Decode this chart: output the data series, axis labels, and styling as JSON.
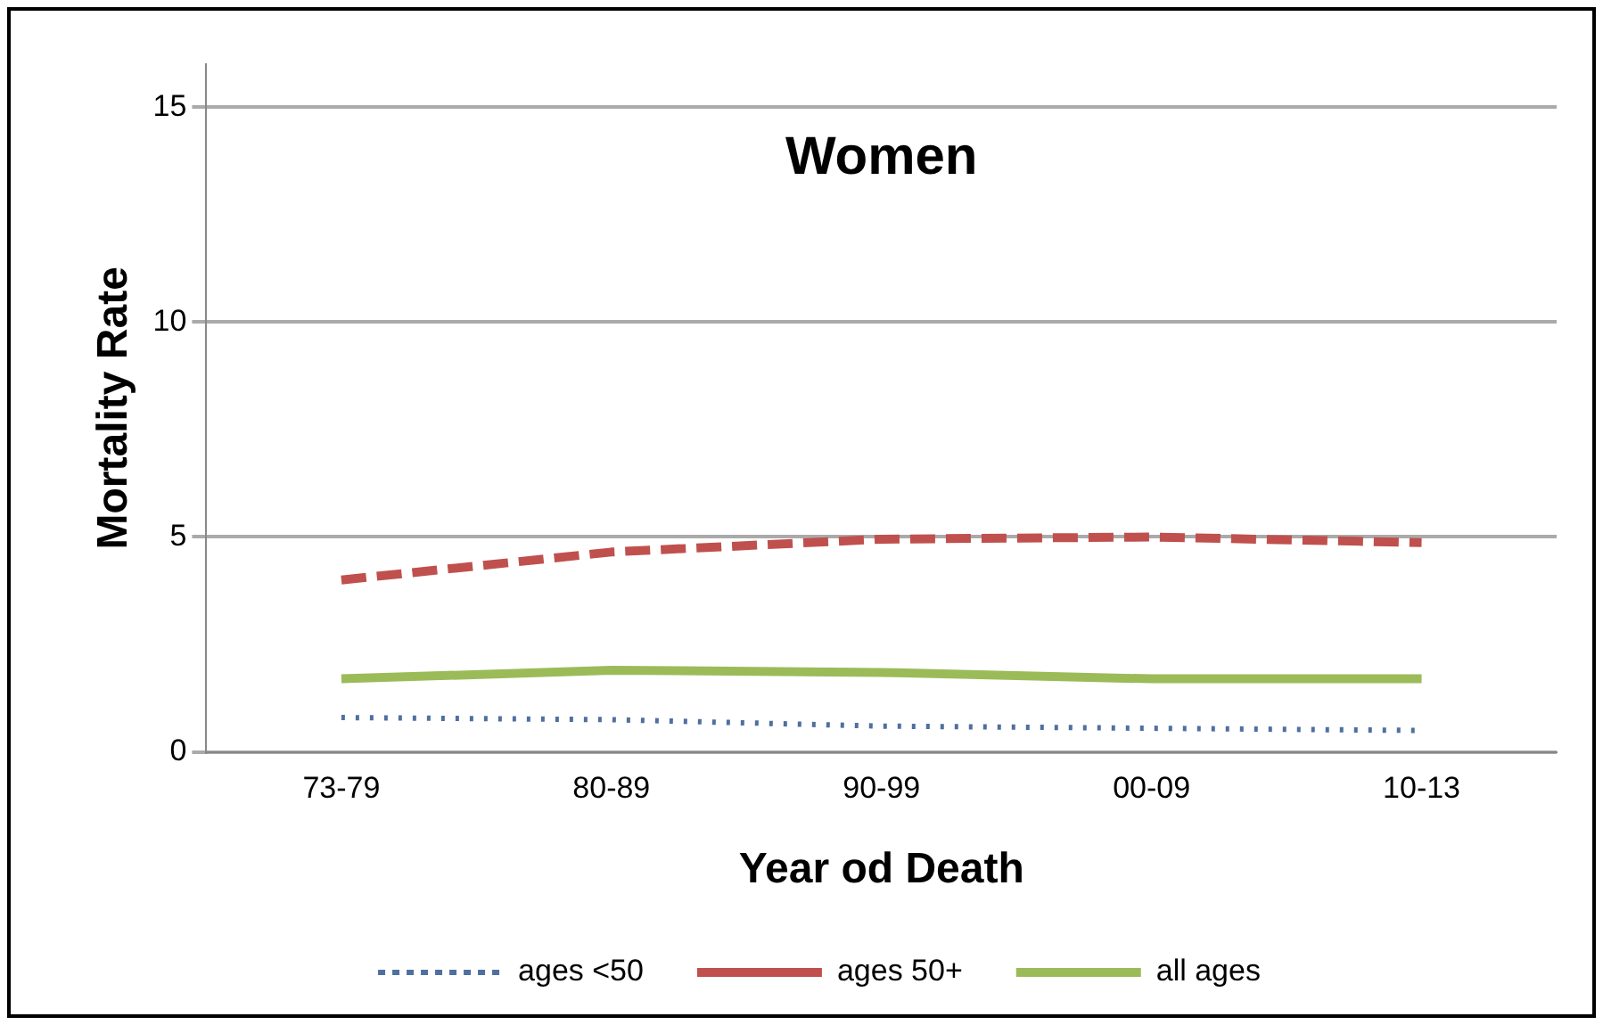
{
  "chart_data": {
    "type": "line",
    "title": "Women",
    "xlabel": "Year od Death",
    "ylabel": "Mortality Rate",
    "categories": [
      "73-79",
      "80-89",
      "90-99",
      "00-09",
      "10-13"
    ],
    "series": [
      {
        "name": "ages <50",
        "color": "#4f6fa0",
        "line_style": "dotted",
        "values": [
          0.8,
          0.75,
          0.6,
          0.55,
          0.5
        ]
      },
      {
        "name": "ages 50+",
        "color": "#c0504d",
        "line_style": "dashed",
        "values": [
          4.0,
          4.65,
          4.95,
          5.0,
          4.87
        ]
      },
      {
        "name": "all ages",
        "color": "#9bbb59",
        "line_style": "solid",
        "values": [
          1.7,
          1.9,
          1.85,
          1.7,
          1.7
        ]
      }
    ],
    "ylim": [
      0,
      16
    ],
    "yticks": [
      0,
      5,
      10,
      15
    ],
    "grid": "y",
    "legend": "bottom",
    "marker": "none"
  }
}
